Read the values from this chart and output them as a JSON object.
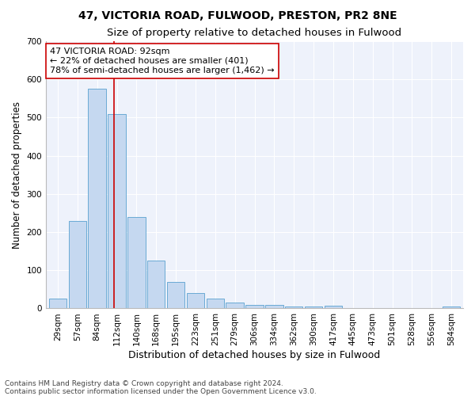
{
  "title1": "47, VICTORIA ROAD, FULWOOD, PRESTON, PR2 8NE",
  "title2": "Size of property relative to detached houses in Fulwood",
  "xlabel": "Distribution of detached houses by size in Fulwood",
  "ylabel": "Number of detached properties",
  "categories": [
    "29sqm",
    "57sqm",
    "84sqm",
    "112sqm",
    "140sqm",
    "168sqm",
    "195sqm",
    "223sqm",
    "251sqm",
    "279sqm",
    "306sqm",
    "334sqm",
    "362sqm",
    "390sqm",
    "417sqm",
    "445sqm",
    "473sqm",
    "501sqm",
    "528sqm",
    "556sqm",
    "584sqm"
  ],
  "values": [
    25,
    230,
    575,
    510,
    240,
    125,
    70,
    40,
    25,
    15,
    10,
    10,
    5,
    5,
    8,
    0,
    0,
    0,
    0,
    0,
    5
  ],
  "bar_color": "#c5d8f0",
  "bar_edgecolor": "#6aaad4",
  "bar_linewidth": 0.7,
  "vline_x_index": 2.85,
  "vline_color": "#cc0000",
  "vline_linewidth": 1.2,
  "annotation_text": "47 VICTORIA ROAD: 92sqm\n← 22% of detached houses are smaller (401)\n78% of semi-detached houses are larger (1,462) →",
  "annotation_box_facecolor": "white",
  "annotation_box_edgecolor": "#cc0000",
  "ylim": [
    0,
    700
  ],
  "yticks": [
    0,
    100,
    200,
    300,
    400,
    500,
    600,
    700
  ],
  "footnote_line1": "Contains HM Land Registry data © Crown copyright and database right 2024.",
  "footnote_line2": "Contains public sector information licensed under the Open Government Licence v3.0.",
  "bg_color": "#eef2fb",
  "grid_color": "#ffffff",
  "title1_fontsize": 10,
  "title2_fontsize": 9.5,
  "xlabel_fontsize": 9,
  "ylabel_fontsize": 8.5,
  "tick_fontsize": 7.5,
  "annotation_fontsize": 8,
  "footnote_fontsize": 6.5
}
